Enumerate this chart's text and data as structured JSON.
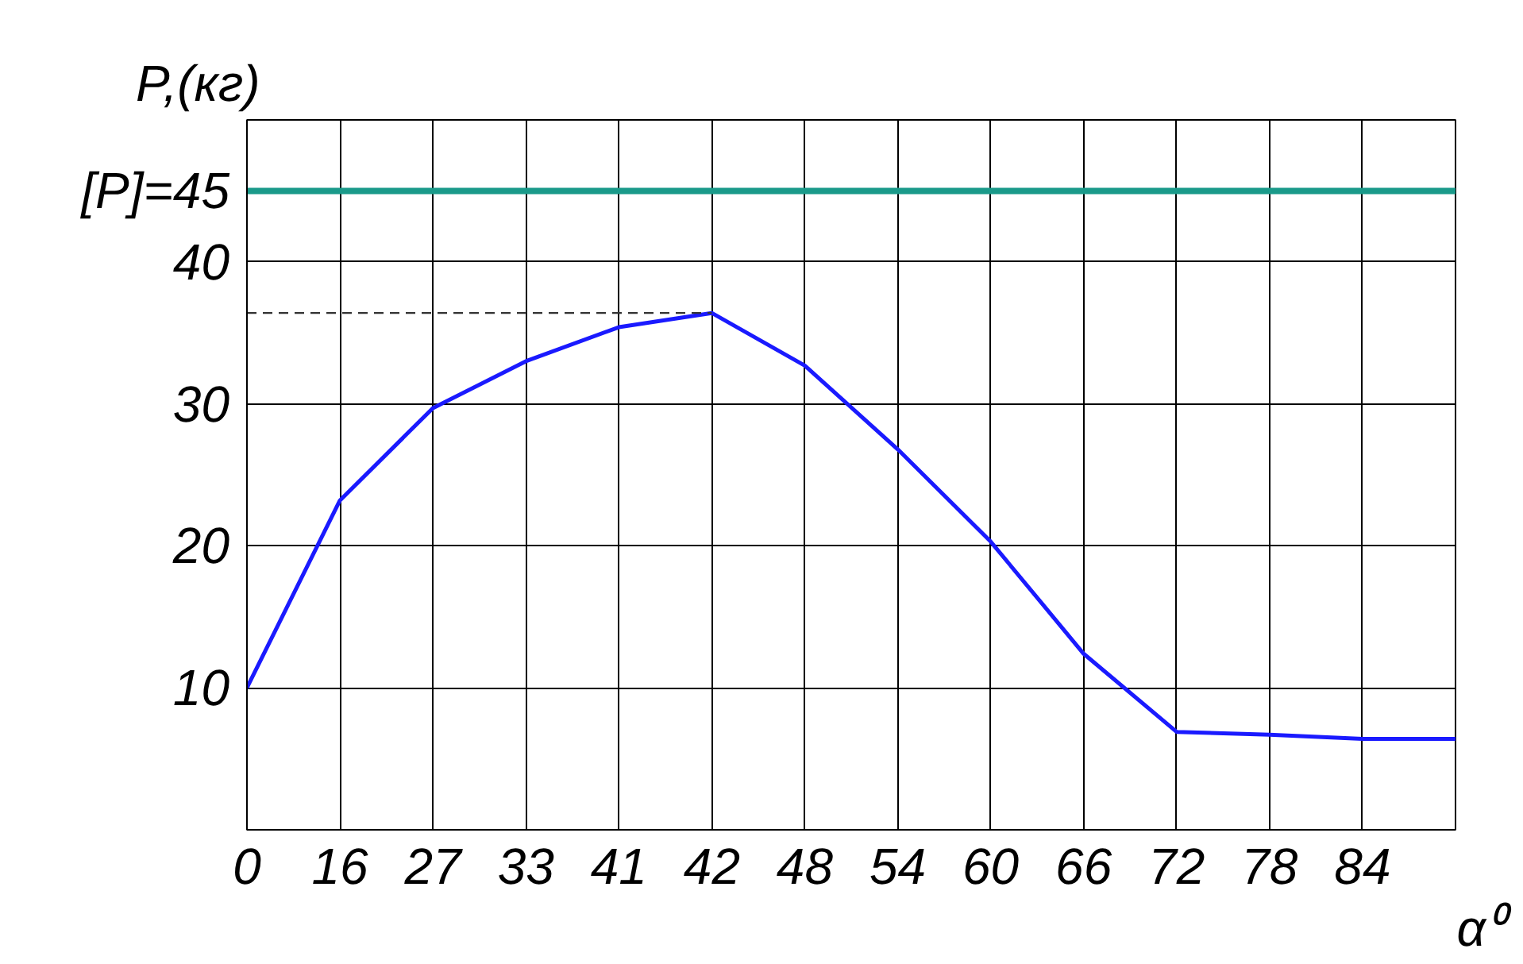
{
  "chart_data": {
    "type": "line",
    "xlabel": "α⁰",
    "ylabel": "P,(кг)",
    "categories": [
      "0",
      "16",
      "27",
      "33",
      "41",
      "42",
      "48",
      "54",
      "60",
      "66",
      "72",
      "78",
      "84",
      null
    ],
    "series": [
      {
        "color": "#1a1aff",
        "values": [
          10,
          23.2,
          29.7,
          33.0,
          35.4,
          36.4,
          32.7,
          26.8,
          20.3,
          12.4,
          6.9,
          6.7,
          6.4,
          6.4
        ]
      }
    ],
    "ylim": [
      0,
      50
    ],
    "yticks": [
      10,
      20,
      30,
      40
    ],
    "grid": true,
    "ref_lines": [
      {
        "axis": "y",
        "value": 45,
        "label": "[P]=45",
        "color": "#1a9a8a",
        "line_style": "solid"
      },
      {
        "axis": "y",
        "value": 36.4,
        "color": "#333333",
        "line_style": "dashed"
      }
    ]
  }
}
